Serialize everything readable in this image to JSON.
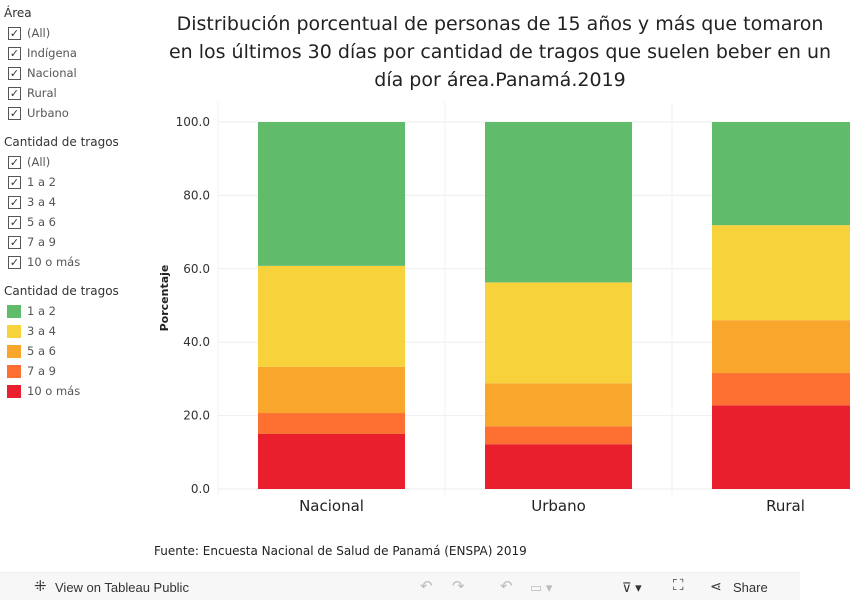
{
  "filters": {
    "area": {
      "title": "Área",
      "items": [
        "(All)",
        "Indígena",
        "Nacional",
        "Rural",
        "Urbano"
      ]
    },
    "tragos": {
      "title": "Cantidad de tragos",
      "items": [
        "(All)",
        "1 a 2",
        "3 a 4",
        "5 a 6",
        "7 a 9",
        "10 o más"
      ]
    },
    "legend": {
      "title": "Cantidad de tragos",
      "items": [
        {
          "label": "1 a 2",
          "color": "#60bb6a"
        },
        {
          "label": "3 a 4",
          "color": "#f8d23b"
        },
        {
          "label": "5 a 6",
          "color": "#f8a62c"
        },
        {
          "label": "7 a 9",
          "color": "#fe6f32"
        },
        {
          "label": "10 o más",
          "color": "#ea1f2d"
        }
      ]
    }
  },
  "title": "Distribución porcentual de personas de 15 años y más que tomaron\nen los últimos 30 días por cantidad de tragos que suelen beber en un\ndía por área.Panamá.2019",
  "source": "Fuente: Encuesta Nacional de Salud de Panamá (ENSPA) 2019",
  "chart_data": {
    "type": "bar",
    "stacked": true,
    "categories": [
      "Nacional",
      "Urbano",
      "Rural"
    ],
    "ylabel": "Porcentaje",
    "ylim": [
      0,
      100
    ],
    "yticks": [
      "0.0",
      "20.0",
      "40.0",
      "60.0",
      "80.0",
      "100.0"
    ],
    "series": [
      {
        "name": "10 o más",
        "color": "#ea1f2d",
        "values": [
          15.0,
          12.2,
          22.8
        ]
      },
      {
        "name": "7 a 9",
        "color": "#fe6f32",
        "values": [
          5.7,
          4.9,
          8.8
        ]
      },
      {
        "name": "5 a 6",
        "color": "#f8a62c",
        "values": [
          12.6,
          11.7,
          14.4
        ]
      },
      {
        "name": "3 a 4",
        "color": "#f8d23b",
        "values": [
          27.5,
          27.5,
          25.9
        ]
      },
      {
        "name": "1 a 2",
        "color": "#60bb6a",
        "values": [
          39.2,
          43.7,
          28.1
        ]
      }
    ]
  },
  "toolbar": {
    "view": "View on Tableau Public",
    "share": "Share"
  }
}
